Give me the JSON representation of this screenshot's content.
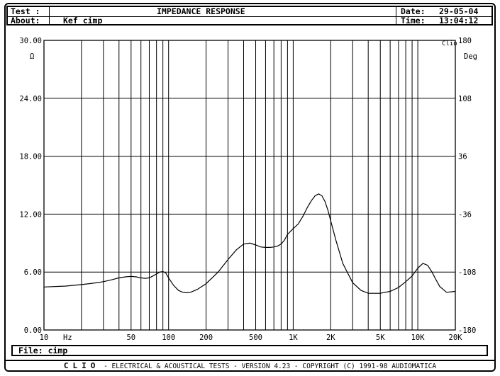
{
  "header": {
    "test_label": "Test :",
    "title": "IMPEDANCE RESPONSE",
    "about_label": "About:",
    "about_value": "Kef cimp",
    "date_label": "Date:",
    "date_value": "29-05-04",
    "time_label": "Time:",
    "time_value": "13:04:12"
  },
  "file": {
    "label": "File:",
    "value": "cimp"
  },
  "footer": {
    "brand": "CLIO",
    "text": " - ELECTRICAL & ACOUSTICAL TESTS - VERSION 4.23 - COPYRIGHT (C) 1991-98 AUDIOMATICA"
  },
  "chart_data": {
    "type": "line",
    "title": "IMPEDANCE RESPONSE",
    "xlabel": "Hz",
    "ylabel": "Ω",
    "y2label": "Deg",
    "corner_label": "Clio",
    "x_scale": "log",
    "xlim": [
      10,
      20000
    ],
    "ylim": [
      0,
      30
    ],
    "y2lim": [
      -180,
      180
    ],
    "grid": true,
    "x_ticks": [
      {
        "value": 10,
        "label": "10"
      },
      {
        "value": 50,
        "label": "50"
      },
      {
        "value": 100,
        "label": "100"
      },
      {
        "value": 200,
        "label": "200"
      },
      {
        "value": 500,
        "label": "500"
      },
      {
        "value": 1000,
        "label": "1K"
      },
      {
        "value": 2000,
        "label": "2K"
      },
      {
        "value": 5000,
        "label": "5K"
      },
      {
        "value": 10000,
        "label": "10K"
      },
      {
        "value": 20000,
        "label": "20K"
      }
    ],
    "y_ticks": [
      "0.00",
      "6.00",
      "12.00",
      "18.00",
      "24.00",
      "30.00"
    ],
    "y2_ticks": [
      "-180",
      "-108",
      "-36",
      "36",
      "108",
      "180"
    ],
    "series": [
      {
        "color": "#000000",
        "x": [
          10,
          15,
          20,
          25,
          30,
          35,
          40,
          45,
          50,
          55,
          60,
          65,
          70,
          75,
          80,
          85,
          90,
          95,
          100,
          110,
          120,
          130,
          140,
          150,
          170,
          200,
          250,
          300,
          350,
          400,
          450,
          500,
          550,
          600,
          650,
          700,
          750,
          800,
          850,
          900,
          1000,
          1100,
          1200,
          1300,
          1400,
          1500,
          1600,
          1700,
          1800,
          1900,
          2000,
          2200,
          2500,
          3000,
          3500,
          4000,
          5000,
          6000,
          7000,
          8000,
          9000,
          10000,
          11000,
          12000,
          13000,
          14000,
          15000,
          17000,
          20000
        ],
        "y": [
          4.45,
          4.55,
          4.7,
          4.85,
          5.0,
          5.2,
          5.4,
          5.5,
          5.55,
          5.5,
          5.4,
          5.35,
          5.4,
          5.6,
          5.8,
          6.0,
          6.05,
          5.9,
          5.4,
          4.6,
          4.1,
          3.9,
          3.85,
          3.9,
          4.2,
          4.8,
          6.0,
          7.3,
          8.3,
          8.9,
          9.0,
          8.8,
          8.6,
          8.55,
          8.55,
          8.6,
          8.7,
          8.9,
          9.3,
          9.9,
          10.5,
          11.0,
          11.8,
          12.7,
          13.4,
          13.9,
          14.1,
          13.9,
          13.3,
          12.4,
          11.3,
          9.3,
          6.9,
          4.9,
          4.1,
          3.8,
          3.8,
          4.0,
          4.4,
          5.0,
          5.6,
          6.4,
          6.9,
          6.7,
          6.0,
          5.2,
          4.5,
          3.9,
          4.0
        ]
      }
    ]
  }
}
